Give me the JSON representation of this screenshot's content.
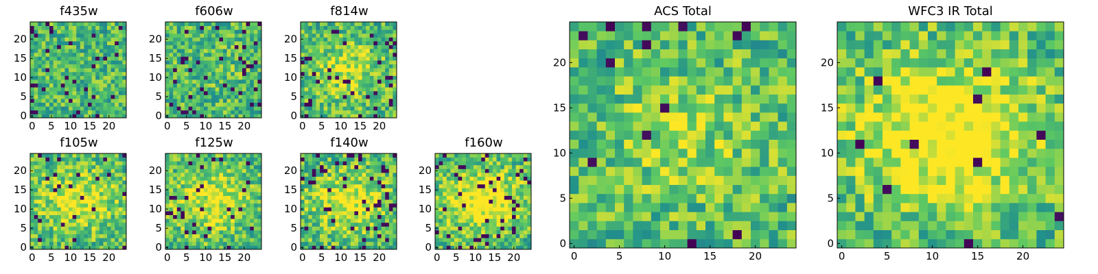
{
  "figure": {
    "colormap": "viridis",
    "colormap_stops": [
      "#440154",
      "#3b528b",
      "#21918c",
      "#5ec962",
      "#fde725"
    ],
    "background": "#ffffff"
  },
  "chart_data": [
    {
      "type": "heatmap",
      "id": "f435w",
      "title": "f435w",
      "size": 25,
      "xticks": [
        0,
        5,
        10,
        15,
        20
      ],
      "yticks": [
        0,
        5,
        10,
        15,
        20
      ],
      "xlim": [
        -0.5,
        24.5
      ],
      "ylim": [
        -0.5,
        24.5
      ],
      "noise_seed": 11,
      "blob_strength": 0.0,
      "dark_rate": 0.05,
      "note_values": "per-pixel flux values are not readable from the image; mostly uniform noise field"
    },
    {
      "type": "heatmap",
      "id": "f606w",
      "title": "f606w",
      "size": 25,
      "xticks": [
        0,
        5,
        10,
        15,
        20
      ],
      "yticks": [
        0,
        5,
        10,
        15,
        20
      ],
      "xlim": [
        -0.5,
        24.5
      ],
      "ylim": [
        -0.5,
        24.5
      ],
      "noise_seed": 23,
      "blob_strength": 0.05,
      "dark_rate": 0.06
    },
    {
      "type": "heatmap",
      "id": "f814w",
      "title": "f814w",
      "size": 25,
      "xticks": [
        0,
        5,
        10,
        15,
        20
      ],
      "yticks": [
        0,
        5,
        10,
        15,
        20
      ],
      "xlim": [
        -0.5,
        24.5
      ],
      "ylim": [
        -0.5,
        24.5
      ],
      "noise_seed": 37,
      "blob_strength": 0.2,
      "dark_rate": 0.06
    },
    {
      "type": "heatmap",
      "id": "f105w",
      "title": "f105w",
      "size": 25,
      "xticks": [
        0,
        5,
        10,
        15,
        20
      ],
      "yticks": [
        0,
        5,
        10,
        15,
        20
      ],
      "xlim": [
        -0.5,
        24.5
      ],
      "ylim": [
        -0.5,
        24.5
      ],
      "noise_seed": 41,
      "blob_strength": 0.3,
      "dark_rate": 0.06
    },
    {
      "type": "heatmap",
      "id": "f125w",
      "title": "f125w",
      "size": 25,
      "xticks": [
        0,
        5,
        10,
        15,
        20
      ],
      "yticks": [
        0,
        5,
        10,
        15,
        20
      ],
      "xlim": [
        -0.5,
        24.5
      ],
      "ylim": [
        -0.5,
        24.5
      ],
      "noise_seed": 53,
      "blob_strength": 0.3,
      "dark_rate": 0.06
    },
    {
      "type": "heatmap",
      "id": "f140w",
      "title": "f140w",
      "size": 25,
      "xticks": [
        0,
        5,
        10,
        15,
        20
      ],
      "yticks": [
        0,
        5,
        10,
        15,
        20
      ],
      "xlim": [
        -0.5,
        24.5
      ],
      "ylim": [
        -0.5,
        24.5
      ],
      "noise_seed": 67,
      "blob_strength": 0.3,
      "dark_rate": 0.07
    },
    {
      "type": "heatmap",
      "id": "f160w",
      "title": "f160w",
      "size": 25,
      "xticks": [
        0,
        5,
        10,
        15,
        20
      ],
      "yticks": [
        0,
        5,
        10,
        15,
        20
      ],
      "xlim": [
        -0.5,
        24.5
      ],
      "ylim": [
        -0.5,
        24.5
      ],
      "noise_seed": 79,
      "blob_strength": 0.4,
      "dark_rate": 0.08
    },
    {
      "type": "heatmap",
      "id": "acs-total",
      "title": "ACS Total",
      "size": 25,
      "xticks": [
        0,
        5,
        10,
        15,
        20
      ],
      "yticks": [
        0,
        5,
        10,
        15,
        20
      ],
      "xlim": [
        -0.5,
        24.5
      ],
      "ylim": [
        -0.5,
        24.5
      ],
      "noise_seed": 97,
      "blob_strength": 0.15,
      "dark_rate": 0.03
    },
    {
      "type": "heatmap",
      "id": "wfc3-ir-total",
      "title": "WFC3 IR Total",
      "size": 25,
      "xticks": [
        0,
        5,
        10,
        15,
        20
      ],
      "yticks": [
        0,
        5,
        10,
        15,
        20
      ],
      "xlim": [
        -0.5,
        24.5
      ],
      "ylim": [
        -0.5,
        24.5
      ],
      "noise_seed": 131,
      "blob_strength": 0.45,
      "dark_rate": 0.02
    }
  ]
}
